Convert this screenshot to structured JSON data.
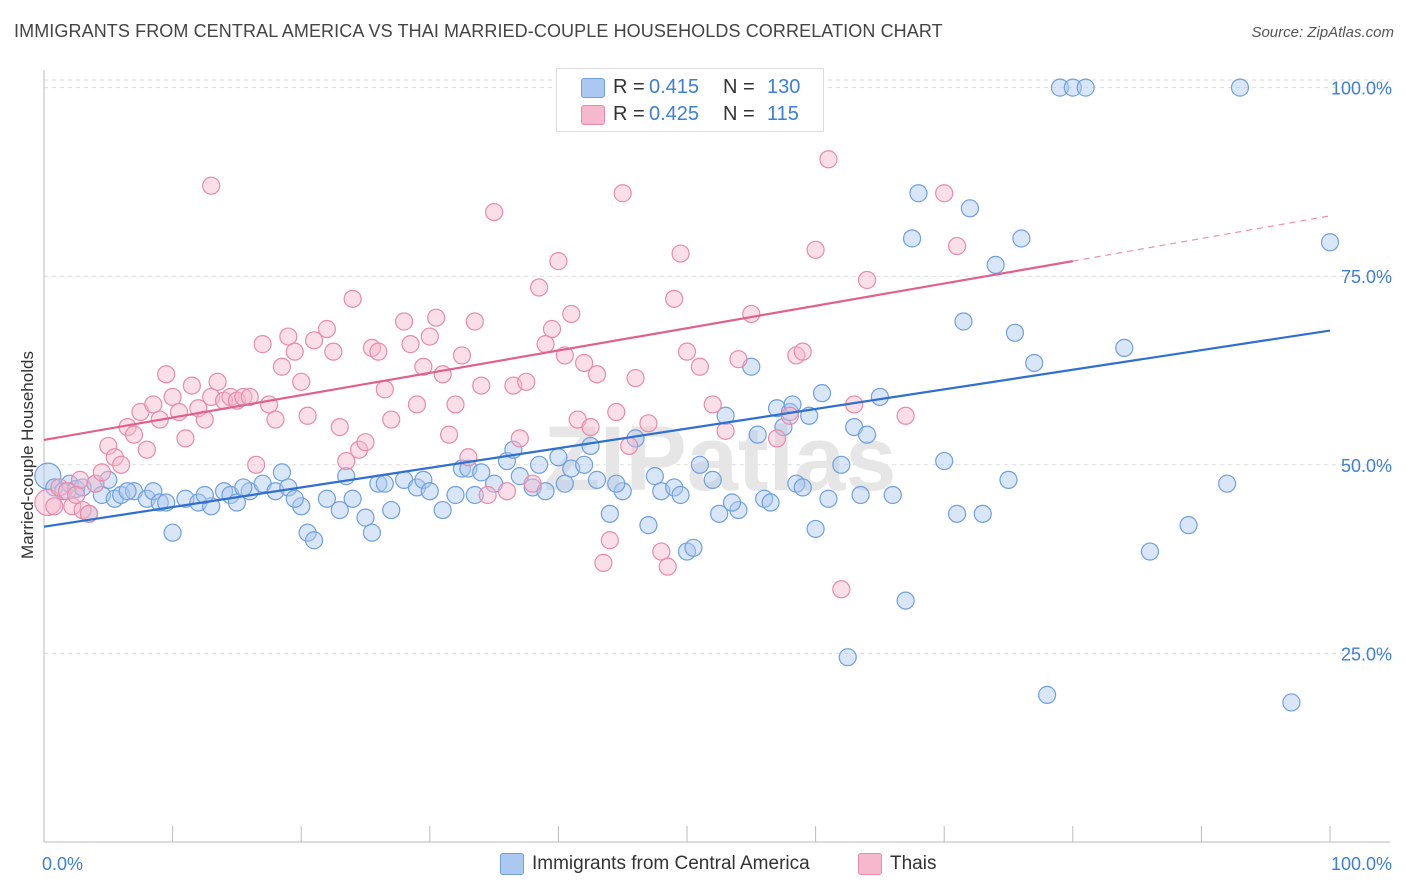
{
  "title": "IMMIGRANTS FROM CENTRAL AMERICA VS THAI MARRIED-COUPLE HOUSEHOLDS CORRELATION CHART",
  "source": "Source: ZipAtlas.com",
  "watermark": "ZIPatlas",
  "legend_top": {
    "series1": {
      "r_label": "R =",
      "r_value": "0.415",
      "n_label": "N =",
      "n_value": "130"
    },
    "series2": {
      "r_label": "R =",
      "r_value": "0.425",
      "n_label": "N =",
      "n_value": "115"
    }
  },
  "legend_bottom": {
    "series1": "Immigrants from Central America",
    "series2": "Thais"
  },
  "colors": {
    "blue_fill": "#aac8f0",
    "blue_stroke": "#6fa0dd",
    "blue_line": "#2f6fcf",
    "pink_fill": "#f5b8cc",
    "pink_stroke": "#e98aab",
    "pink_line": "#e0608e",
    "axis_text": "#3d7fd6",
    "grid": "#dddddd"
  },
  "chart_data": {
    "type": "scatter",
    "title": "IMMIGRANTS FROM CENTRAL AMERICA VS THAI MARRIED-COUPLE HOUSEHOLDS CORRELATION CHART",
    "xlabel": "",
    "ylabel": "Married-couple Households",
    "xlim": [
      0,
      100
    ],
    "ylim": [
      0,
      100
    ],
    "x_tick_labels": [
      "0.0%",
      "100.0%"
    ],
    "y_tick_labels": [
      "25.0%",
      "50.0%",
      "75.0%",
      "100.0%"
    ],
    "y_ticks": [
      25,
      50,
      75,
      100
    ],
    "grid": true,
    "legend_position": "top-center",
    "series": [
      {
        "name": "Immigrants from Central America",
        "r": 0.415,
        "n": 130,
        "trend": {
          "x0": 0,
          "y0": 41.8,
          "x1": 100,
          "y1": 67.8
        },
        "points": [
          [
            0.3,
            48.5
          ],
          [
            0.8,
            47
          ],
          [
            1.5,
            46.5
          ],
          [
            2,
            47.5
          ],
          [
            2.5,
            46.8
          ],
          [
            3.5,
            43.5
          ],
          [
            4,
            47.5
          ],
          [
            4.5,
            46
          ],
          [
            5,
            48
          ],
          [
            5.5,
            45.5
          ],
          [
            6,
            46
          ],
          [
            7,
            46.5
          ],
          [
            8,
            45.5
          ],
          [
            8.5,
            46.5
          ],
          [
            9,
            45
          ],
          [
            10,
            41
          ],
          [
            11,
            45.5
          ],
          [
            12,
            45
          ],
          [
            13,
            44.5
          ],
          [
            14,
            46.5
          ],
          [
            14.5,
            46
          ],
          [
            15,
            45
          ],
          [
            16,
            46.5
          ],
          [
            17,
            47.5
          ],
          [
            18,
            46.5
          ],
          [
            18.5,
            49
          ],
          [
            19,
            47
          ],
          [
            20,
            44.5
          ],
          [
            20.5,
            41
          ],
          [
            21,
            40
          ],
          [
            22,
            45.5
          ],
          [
            23,
            44
          ],
          [
            23.5,
            48.5
          ],
          [
            24,
            45.5
          ],
          [
            25,
            43
          ],
          [
            25.5,
            41
          ],
          [
            26,
            47.5
          ],
          [
            27,
            44
          ],
          [
            28,
            48
          ],
          [
            29,
            47
          ],
          [
            29.5,
            48
          ],
          [
            30,
            46.5
          ],
          [
            31,
            44
          ],
          [
            32,
            46
          ],
          [
            32.5,
            49.5
          ],
          [
            33,
            49.5
          ],
          [
            34,
            49
          ],
          [
            35,
            47.5
          ],
          [
            36,
            50.5
          ],
          [
            36.5,
            52
          ],
          [
            37,
            48.5
          ],
          [
            38,
            47
          ],
          [
            39,
            46.5
          ],
          [
            40,
            51
          ],
          [
            40.5,
            47.5
          ],
          [
            41,
            49.5
          ],
          [
            42,
            50
          ],
          [
            42.5,
            52.5
          ],
          [
            43,
            48
          ],
          [
            44,
            43.5
          ],
          [
            45,
            46.5
          ],
          [
            46,
            53.5
          ],
          [
            47,
            42
          ],
          [
            47.5,
            48.5
          ],
          [
            48,
            46.5
          ],
          [
            49,
            47
          ],
          [
            49.5,
            46
          ],
          [
            50,
            38.5
          ],
          [
            50.5,
            39
          ],
          [
            51,
            50
          ],
          [
            52,
            48
          ],
          [
            52.5,
            43.5
          ],
          [
            53,
            56.5
          ],
          [
            54,
            44
          ],
          [
            55,
            63
          ],
          [
            55.5,
            54
          ],
          [
            56,
            45.5
          ],
          [
            56.5,
            45
          ],
          [
            57,
            57.5
          ],
          [
            57.5,
            55
          ],
          [
            58,
            57
          ],
          [
            58.5,
            47.5
          ],
          [
            59,
            47
          ],
          [
            59.5,
            56.5
          ],
          [
            60,
            41.5
          ],
          [
            60.5,
            59.5
          ],
          [
            61,
            45.5
          ],
          [
            62,
            50
          ],
          [
            62.5,
            24.5
          ],
          [
            63,
            55
          ],
          [
            63.5,
            46
          ],
          [
            64,
            54
          ],
          [
            65,
            59
          ],
          [
            66,
            46
          ],
          [
            67,
            32
          ],
          [
            67.5,
            80
          ],
          [
            68,
            86
          ],
          [
            70,
            50.5
          ],
          [
            71,
            43.5
          ],
          [
            71.5,
            69
          ],
          [
            72,
            84
          ],
          [
            73,
            43.5
          ],
          [
            74,
            76.5
          ],
          [
            75,
            48
          ],
          [
            75.5,
            67.5
          ],
          [
            76,
            80
          ],
          [
            77,
            63.5
          ],
          [
            78,
            19.5
          ],
          [
            79,
            100
          ],
          [
            80,
            100
          ],
          [
            81,
            100
          ],
          [
            84,
            65.5
          ],
          [
            86,
            38.5
          ],
          [
            89,
            42
          ],
          [
            92,
            47.5
          ],
          [
            93,
            100
          ],
          [
            97,
            18.5
          ],
          [
            100,
            79.5
          ],
          [
            3,
            47
          ],
          [
            6.5,
            46.5
          ],
          [
            9.5,
            45
          ],
          [
            12.5,
            46
          ],
          [
            15.5,
            47
          ],
          [
            19.5,
            45.5
          ],
          [
            26.5,
            47.5
          ],
          [
            33.5,
            46
          ],
          [
            38.5,
            50
          ],
          [
            44.5,
            47.5
          ],
          [
            53.5,
            45
          ],
          [
            58.2,
            58
          ]
        ]
      },
      {
        "name": "Thais",
        "r": 0.425,
        "n": 115,
        "trend": {
          "x0": 0,
          "y0": 53.3,
          "x1": 80,
          "y1": 77.0,
          "dash_to": {
            "x": 100,
            "y": 83.0
          }
        },
        "points": [
          [
            0.3,
            45
          ],
          [
            0.8,
            44.5
          ],
          [
            1.2,
            47
          ],
          [
            1.8,
            46.5
          ],
          [
            2.2,
            44.5
          ],
          [
            2.8,
            48
          ],
          [
            3,
            44
          ],
          [
            3.5,
            43.5
          ],
          [
            4,
            47.5
          ],
          [
            4.5,
            49
          ],
          [
            5,
            52.5
          ],
          [
            5.5,
            51
          ],
          [
            6,
            50
          ],
          [
            6.5,
            55
          ],
          [
            7,
            54
          ],
          [
            7.5,
            57
          ],
          [
            8,
            52
          ],
          [
            8.5,
            58
          ],
          [
            9,
            56
          ],
          [
            9.5,
            62
          ],
          [
            10,
            59
          ],
          [
            10.5,
            57
          ],
          [
            11,
            53.5
          ],
          [
            11.5,
            60.5
          ],
          [
            12,
            57.5
          ],
          [
            12.5,
            56
          ],
          [
            13,
            59
          ],
          [
            13.5,
            61
          ],
          [
            14,
            58.5
          ],
          [
            14.5,
            59
          ],
          [
            15,
            58.5
          ],
          [
            15.5,
            59
          ],
          [
            16,
            59
          ],
          [
            16.5,
            50
          ],
          [
            17,
            66
          ],
          [
            17.5,
            58
          ],
          [
            18,
            56
          ],
          [
            18.5,
            63
          ],
          [
            19,
            67
          ],
          [
            19.5,
            65
          ],
          [
            20,
            61
          ],
          [
            20.5,
            56.5
          ],
          [
            21,
            66.5
          ],
          [
            22,
            68
          ],
          [
            22.5,
            65
          ],
          [
            23,
            55
          ],
          [
            23.5,
            50.5
          ],
          [
            24,
            72
          ],
          [
            24.5,
            52
          ],
          [
            25,
            53
          ],
          [
            25.5,
            65.5
          ],
          [
            26,
            65
          ],
          [
            26.5,
            60
          ],
          [
            27,
            56
          ],
          [
            28,
            69
          ],
          [
            28.5,
            66
          ],
          [
            29,
            58
          ],
          [
            29.5,
            63
          ],
          [
            30,
            67
          ],
          [
            30.5,
            69.5
          ],
          [
            31,
            62
          ],
          [
            31.5,
            54
          ],
          [
            32,
            58
          ],
          [
            32.5,
            64.5
          ],
          [
            33,
            51
          ],
          [
            33.5,
            69
          ],
          [
            34,
            60.5
          ],
          [
            34.5,
            46
          ],
          [
            35,
            83.5
          ],
          [
            36,
            46.5
          ],
          [
            36.5,
            60.5
          ],
          [
            37,
            53.5
          ],
          [
            37.5,
            61
          ],
          [
            38,
            47.5
          ],
          [
            38.5,
            73.5
          ],
          [
            39,
            66
          ],
          [
            39.5,
            68
          ],
          [
            40,
            77
          ],
          [
            40.5,
            64.5
          ],
          [
            41,
            70
          ],
          [
            41.5,
            56
          ],
          [
            42,
            63.5
          ],
          [
            42.5,
            55
          ],
          [
            43,
            62
          ],
          [
            43.5,
            37
          ],
          [
            44,
            40
          ],
          [
            44.5,
            57
          ],
          [
            45,
            86
          ],
          [
            45.5,
            52.5
          ],
          [
            46,
            61.5
          ],
          [
            47,
            55.5
          ],
          [
            48,
            38.5
          ],
          [
            48.5,
            36.5
          ],
          [
            49,
            72
          ],
          [
            49.5,
            78
          ],
          [
            50,
            65
          ],
          [
            51,
            63
          ],
          [
            52,
            58
          ],
          [
            53,
            54.5
          ],
          [
            54,
            64
          ],
          [
            55,
            70
          ],
          [
            57,
            53.5
          ],
          [
            58,
            56.5
          ],
          [
            58.5,
            64.5
          ],
          [
            59,
            65
          ],
          [
            60,
            78.5
          ],
          [
            61,
            90.5
          ],
          [
            62,
            33.5
          ],
          [
            63,
            58
          ],
          [
            64,
            74.5
          ],
          [
            67,
            56.5
          ],
          [
            70,
            86
          ],
          [
            71,
            79
          ],
          [
            13,
            87
          ],
          [
            2.5,
            46
          ]
        ]
      }
    ]
  }
}
